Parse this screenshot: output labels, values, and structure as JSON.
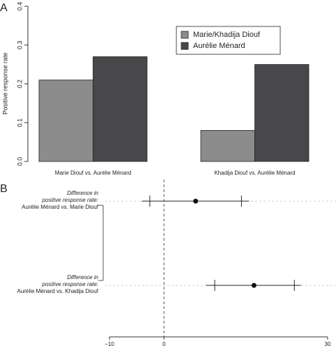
{
  "chart_data": [
    {
      "type": "bar",
      "panel": "A",
      "y_label": "Positive response rate",
      "categories": [
        "Marie Diouf vs. Aurélie Ménard",
        "Khadija Diouf vs. Aurélie Ménard"
      ],
      "series": [
        {
          "name": "Marie/Khadija Diouf",
          "color": "#8c8c8c",
          "values": [
            0.21,
            0.08
          ]
        },
        {
          "name": "Aurélie Ménard",
          "color": "#48484b",
          "values": [
            0.27,
            0.25
          ]
        }
      ],
      "ylim": [
        0,
        0.4
      ],
      "yticks": [
        {
          "value": 0,
          "label": "0.0"
        },
        0.1,
        0.2,
        0.3,
        0.4
      ],
      "legend": "top-right"
    },
    {
      "type": "dot",
      "panel": "B",
      "rows": [
        {
          "label": [
            "Difference in",
            "positive response rate:",
            "Aurélie Ménard vs. Marie Diouf"
          ],
          "value": 5.8,
          "outer": [
            -4.1,
            15.6
          ],
          "inner": [
            -2.6,
            14.2
          ]
        },
        {
          "label": [
            "Difference in",
            "positive response rate:",
            "Aurélie Ménard vs. Khadija Diouf"
          ],
          "value": 16.5,
          "outer": [
            7.7,
            25.1
          ],
          "inner": [
            9.3,
            23.9
          ]
        }
      ],
      "xlim": [
        -10,
        30
      ],
      "xticks": [
        {
          "value": -10,
          "label": "−10"
        },
        0,
        30
      ],
      "refline": 0
    }
  ]
}
